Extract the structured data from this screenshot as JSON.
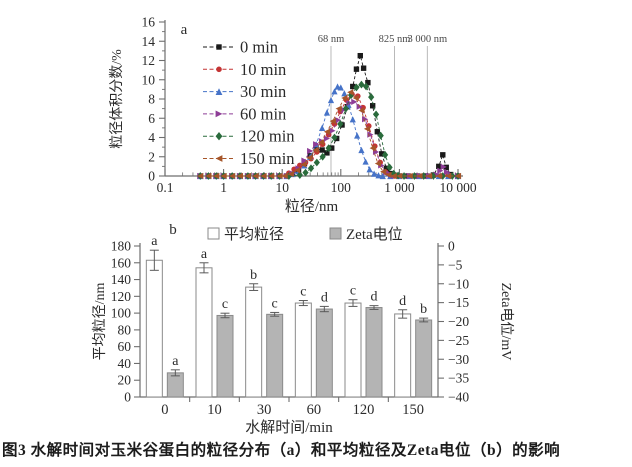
{
  "caption": "图3 水解时间对玉米谷蛋白的粒径分布（a）和平均粒径及Zeta电位（b）的影响",
  "chart_data": [
    {
      "type": "line",
      "panel_label": "a",
      "xlabel": "粒径/nm",
      "ylabel": "粒径体积分数/%",
      "x_scale": "log",
      "xlim": [
        0.1,
        10000
      ],
      "ylim": [
        0,
        16
      ],
      "y_ticks": [
        "0",
        "2",
        "4",
        "6",
        "8",
        "10",
        "12",
        "14",
        "16"
      ],
      "x_ticks": [
        0.1,
        1,
        10,
        100,
        1000,
        10000
      ],
      "x_tick_labels": [
        "0.1",
        "1",
        "10",
        "100",
        "1 000",
        "10 000"
      ],
      "grid": false,
      "legend_position": "upper-left-inside",
      "annotations": [
        {
          "label": "68 nm",
          "x": 68
        },
        {
          "label": "825 nm",
          "x": 825
        },
        {
          "label": "3 000 nm",
          "x": 3000
        }
      ],
      "series": [
        {
          "name": "0 min",
          "color": "#1a1a1a",
          "marker": "square",
          "points": [
            [
              0.4,
              0
            ],
            [
              0.55,
              0
            ],
            [
              0.75,
              0
            ],
            [
              1,
              0
            ],
            [
              1.4,
              0
            ],
            [
              1.9,
              0
            ],
            [
              2.6,
              0
            ],
            [
              3.5,
              0
            ],
            [
              4.8,
              0
            ],
            [
              6.5,
              0
            ],
            [
              9,
              0
            ],
            [
              12,
              0
            ],
            [
              15,
              0.2
            ],
            [
              19,
              0.6
            ],
            [
              24,
              1.3
            ],
            [
              30,
              2.1
            ],
            [
              38,
              2.8
            ],
            [
              48,
              2.7
            ],
            [
              58,
              2.4
            ],
            [
              70,
              2.9
            ],
            [
              85,
              3.9
            ],
            [
              105,
              5.3
            ],
            [
              130,
              7.2
            ],
            [
              160,
              9.3
            ],
            [
              185,
              11.1
            ],
            [
              215,
              12.5
            ],
            [
              245,
              11.2
            ],
            [
              290,
              9.7
            ],
            [
              350,
              7.3
            ],
            [
              420,
              4.6
            ],
            [
              500,
              2.3
            ],
            [
              600,
              0.8
            ],
            [
              700,
              0.25
            ],
            [
              825,
              0.05
            ],
            [
              1000,
              0
            ],
            [
              1400,
              0
            ],
            [
              2000,
              0
            ],
            [
              2800,
              0
            ],
            [
              3800,
              0.1
            ],
            [
              4700,
              1.0
            ],
            [
              5500,
              2.2
            ],
            [
              6300,
              0.9
            ],
            [
              7500,
              0.15
            ],
            [
              10000,
              0
            ]
          ]
        },
        {
          "name": "10 min",
          "color": "#c43434",
          "marker": "circle",
          "points": [
            [
              0.4,
              0
            ],
            [
              0.55,
              0
            ],
            [
              0.75,
              0
            ],
            [
              1,
              0
            ],
            [
              1.4,
              0
            ],
            [
              1.9,
              0
            ],
            [
              2.6,
              0
            ],
            [
              3.5,
              0
            ],
            [
              4.8,
              0
            ],
            [
              6.5,
              0
            ],
            [
              9,
              0
            ],
            [
              13,
              0.3
            ],
            [
              16,
              0.7
            ],
            [
              20,
              1.1
            ],
            [
              25,
              1.4
            ],
            [
              31,
              1.8
            ],
            [
              39,
              2.5
            ],
            [
              49,
              3.3
            ],
            [
              62,
              4.3
            ],
            [
              78,
              5.4
            ],
            [
              98,
              6.7
            ],
            [
              125,
              7.9
            ],
            [
              155,
              8.5
            ],
            [
              195,
              8.3
            ],
            [
              240,
              7.1
            ],
            [
              300,
              5.2
            ],
            [
              380,
              3.1
            ],
            [
              470,
              1.4
            ],
            [
              580,
              0.4
            ],
            [
              700,
              0.1
            ],
            [
              825,
              0
            ],
            [
              1000,
              0
            ],
            [
              1500,
              0
            ],
            [
              2200,
              0
            ],
            [
              3200,
              0
            ],
            [
              4700,
              0
            ],
            [
              6800,
              0
            ],
            [
              10000,
              0
            ]
          ]
        },
        {
          "name": "30 min",
          "color": "#4673c8",
          "marker": "triangle-up",
          "points": [
            [
              0.4,
              0
            ],
            [
              0.55,
              0
            ],
            [
              0.75,
              0
            ],
            [
              1,
              0
            ],
            [
              1.4,
              0
            ],
            [
              1.9,
              0
            ],
            [
              2.6,
              0
            ],
            [
              3.5,
              0
            ],
            [
              4.8,
              0
            ],
            [
              6.5,
              0
            ],
            [
              9,
              0
            ],
            [
              12,
              0
            ],
            [
              15,
              0.2
            ],
            [
              19,
              0.5
            ],
            [
              24,
              1.1
            ],
            [
              30,
              2.0
            ],
            [
              38,
              3.3
            ],
            [
              48,
              5.0
            ],
            [
              58,
              6.6
            ],
            [
              68,
              7.9
            ],
            [
              78,
              8.8
            ],
            [
              88,
              9.3
            ],
            [
              100,
              9.2
            ],
            [
              115,
              8.6
            ],
            [
              135,
              7.4
            ],
            [
              160,
              5.9
            ],
            [
              190,
              4.2
            ],
            [
              225,
              2.7
            ],
            [
              265,
              1.5
            ],
            [
              310,
              0.7
            ],
            [
              370,
              0.25
            ],
            [
              440,
              0.08
            ],
            [
              520,
              0
            ],
            [
              700,
              0
            ],
            [
              1000,
              0
            ],
            [
              1500,
              0
            ],
            [
              2200,
              0
            ],
            [
              3200,
              0
            ],
            [
              4700,
              0
            ],
            [
              6800,
              0
            ],
            [
              10000,
              0
            ]
          ]
        },
        {
          "name": "60 min",
          "color": "#8e3d97",
          "marker": "triangle-right",
          "points": [
            [
              0.4,
              0
            ],
            [
              0.55,
              0
            ],
            [
              0.75,
              0
            ],
            [
              1,
              0
            ],
            [
              1.4,
              0
            ],
            [
              1.9,
              0
            ],
            [
              2.6,
              0
            ],
            [
              3.5,
              0
            ],
            [
              4.8,
              0
            ],
            [
              6.5,
              0
            ],
            [
              9,
              0
            ],
            [
              12,
              0
            ],
            [
              15,
              0.25
            ],
            [
              19,
              0.8
            ],
            [
              24,
              1.6
            ],
            [
              30,
              2.6
            ],
            [
              38,
              3.3
            ],
            [
              48,
              3.6
            ],
            [
              58,
              3.9
            ],
            [
              72,
              4.7
            ],
            [
              90,
              5.8
            ],
            [
              112,
              6.9
            ],
            [
              140,
              7.6
            ],
            [
              170,
              7.7
            ],
            [
              210,
              7.2
            ],
            [
              260,
              5.9
            ],
            [
              320,
              4.3
            ],
            [
              400,
              2.5
            ],
            [
              490,
              1.1
            ],
            [
              600,
              0.4
            ],
            [
              720,
              0.15
            ],
            [
              825,
              0.05
            ],
            [
              1000,
              0
            ],
            [
              1500,
              0
            ],
            [
              2200,
              0
            ],
            [
              3200,
              0
            ],
            [
              4300,
              0.15
            ],
            [
              5000,
              0.55
            ],
            [
              5700,
              0.95
            ],
            [
              6500,
              0.4
            ],
            [
              8000,
              0.05
            ],
            [
              10000,
              0
            ]
          ]
        },
        {
          "name": "120 min",
          "color": "#2a6b3c",
          "marker": "diamond",
          "points": [
            [
              0.4,
              0
            ],
            [
              0.55,
              0
            ],
            [
              0.75,
              0
            ],
            [
              1,
              0
            ],
            [
              1.4,
              0
            ],
            [
              1.9,
              0
            ],
            [
              2.6,
              0
            ],
            [
              3.5,
              0
            ],
            [
              4.8,
              0
            ],
            [
              6.5,
              0
            ],
            [
              9,
              0
            ],
            [
              13,
              0
            ],
            [
              20,
              0.1
            ],
            [
              25,
              0.35
            ],
            [
              31,
              0.8
            ],
            [
              39,
              1.4
            ],
            [
              49,
              2.0
            ],
            [
              62,
              2.9
            ],
            [
              78,
              4.0
            ],
            [
              98,
              5.4
            ],
            [
              122,
              7.0
            ],
            [
              150,
              8.4
            ],
            [
              185,
              9.2
            ],
            [
              225,
              9.5
            ],
            [
              270,
              9.3
            ],
            [
              330,
              8.2
            ],
            [
              400,
              6.4
            ],
            [
              480,
              4.2
            ],
            [
              570,
              2.2
            ],
            [
              680,
              0.9
            ],
            [
              800,
              0.25
            ],
            [
              950,
              0.05
            ],
            [
              1200,
              0
            ],
            [
              1800,
              0
            ],
            [
              2600,
              0
            ],
            [
              3800,
              0
            ],
            [
              5500,
              0
            ],
            [
              8000,
              0
            ],
            [
              10000,
              0
            ]
          ]
        },
        {
          "name": "150 min",
          "color": "#a65529",
          "marker": "triangle-left",
          "points": [
            [
              0.4,
              0
            ],
            [
              0.55,
              0
            ],
            [
              0.75,
              0
            ],
            [
              1,
              0
            ],
            [
              1.4,
              0
            ],
            [
              1.9,
              0
            ],
            [
              2.6,
              0
            ],
            [
              3.5,
              0
            ],
            [
              4.8,
              0
            ],
            [
              6.5,
              0
            ],
            [
              9,
              0
            ],
            [
              11,
              0
            ],
            [
              14,
              0.2
            ],
            [
              18,
              0.6
            ],
            [
              23,
              1.2
            ],
            [
              29,
              1.9
            ],
            [
              37,
              2.7
            ],
            [
              46,
              3.5
            ],
            [
              58,
              4.6
            ],
            [
              73,
              5.7
            ],
            [
              92,
              7.0
            ],
            [
              115,
              8.1
            ],
            [
              145,
              8.7
            ],
            [
              180,
              8.1
            ],
            [
              225,
              6.8
            ],
            [
              280,
              4.9
            ],
            [
              350,
              2.9
            ],
            [
              430,
              1.3
            ],
            [
              530,
              0.45
            ],
            [
              650,
              0.12
            ],
            [
              800,
              0
            ],
            [
              1000,
              0
            ],
            [
              1500,
              0
            ],
            [
              2200,
              0
            ],
            [
              3200,
              0
            ],
            [
              4700,
              0
            ],
            [
              6800,
              0
            ],
            [
              10000,
              0
            ]
          ]
        }
      ]
    },
    {
      "type": "bar",
      "panel_label": "b",
      "xlabel": "水解时间/min",
      "categories": [
        "0",
        "10",
        "30",
        "60",
        "120",
        "150"
      ],
      "left_axis": {
        "label": "平均粒径/nm",
        "range": [
          0,
          180
        ],
        "ticks": [
          "0",
          "20",
          "40",
          "60",
          "80",
          "100",
          "120",
          "140",
          "160",
          "180"
        ]
      },
      "right_axis": {
        "label": "Zeta电位/mV",
        "range": [
          0,
          -40
        ],
        "ticks": [
          "0",
          "−5",
          "−10",
          "−15",
          "−20",
          "−25",
          "−30",
          "−35",
          "−40"
        ]
      },
      "legend": [
        {
          "label": "平均粒径",
          "swatch": "open"
        },
        {
          "label": "Zeta电位",
          "swatch": "filled"
        }
      ],
      "series": [
        {
          "name": "平均粒径",
          "axis": "left",
          "fill": "#ffffff",
          "stroke": "#8a8a8a",
          "values": [
            163,
            154,
            131,
            112,
            112,
            99
          ],
          "errors": [
            12,
            6,
            4,
            3,
            4,
            5
          ],
          "letters": [
            "a",
            "a",
            "b",
            "c",
            "c",
            "d"
          ]
        },
        {
          "name": "Zeta电位",
          "axis": "right",
          "fill": "#b4b4b4",
          "stroke": "#8a8a8a",
          "values": [
            -33.6,
            -18.4,
            -18.1,
            -16.7,
            -16.3,
            -19.6
          ],
          "errors": [
            0.8,
            0.6,
            0.5,
            0.7,
            0.5,
            0.5
          ],
          "letters": [
            "a",
            "c",
            "c",
            "d",
            "d",
            "b"
          ]
        }
      ]
    }
  ]
}
